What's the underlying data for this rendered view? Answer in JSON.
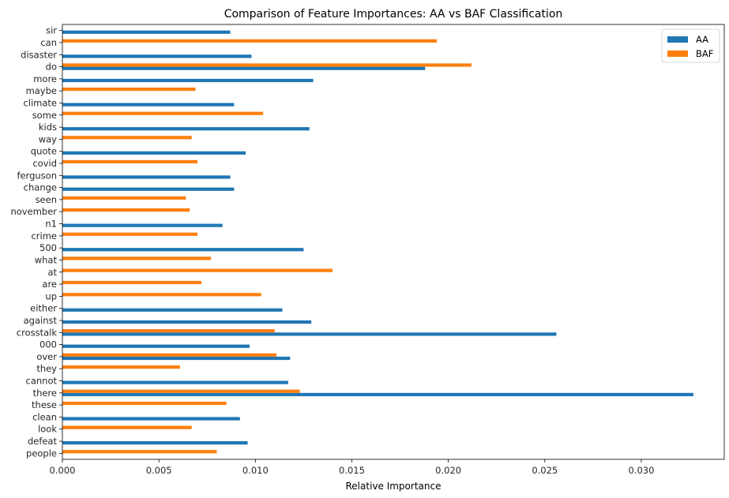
{
  "chart_data": {
    "type": "bar",
    "orientation": "horizontal",
    "title": "Comparison of Feature Importances: AA vs BAF Classification",
    "xlabel": "Relative Importance",
    "ylabel": "",
    "xlim": [
      0.0,
      0.0343
    ],
    "xticks": [
      "0.000",
      "0.005",
      "0.010",
      "0.015",
      "0.020",
      "0.025",
      "0.030"
    ],
    "xtick_values": [
      0.0,
      0.005,
      0.01,
      0.015,
      0.02,
      0.025,
      0.03
    ],
    "grid": false,
    "legend_position": "top-right",
    "categories": [
      "sir",
      "can",
      "disaster",
      "do",
      "more",
      "maybe",
      "climate",
      "some",
      "kids",
      "way",
      "quote",
      "covid",
      "ferguson",
      "change",
      "seen",
      "november",
      "n1",
      "crime",
      "500",
      "what",
      "at",
      "are",
      "up",
      "either",
      "against",
      "crosstalk",
      "000",
      "over",
      "they",
      "cannot",
      "there",
      "these",
      "clean",
      "look",
      "defeat",
      "people"
    ],
    "series": [
      {
        "name": "AA",
        "color": "#1f77b4",
        "values": [
          0.0087,
          0,
          0.0098,
          0.0188,
          0.013,
          0,
          0.0089,
          0,
          0.0128,
          0,
          0.0095,
          0,
          0.0087,
          0.0089,
          0,
          0,
          0.0083,
          0,
          0.0125,
          0,
          0,
          0,
          0,
          0.0114,
          0.0129,
          0.0256,
          0.0097,
          0.0118,
          0,
          0.0117,
          0.0327,
          0,
          0.0092,
          0,
          0.0096,
          0
        ]
      },
      {
        "name": "BAF",
        "color": "#ff7f0e",
        "values": [
          0,
          0.0194,
          0,
          0.0212,
          0,
          0.0069,
          0,
          0.0104,
          0,
          0.0067,
          0,
          0.007,
          0,
          0,
          0.0064,
          0.0066,
          0,
          0.007,
          0,
          0.0077,
          0.014,
          0.0072,
          0.0103,
          0,
          0,
          0.011,
          0,
          0.0111,
          0.0061,
          0,
          0.0123,
          0.0085,
          0,
          0.0067,
          0,
          0.008
        ]
      }
    ]
  }
}
